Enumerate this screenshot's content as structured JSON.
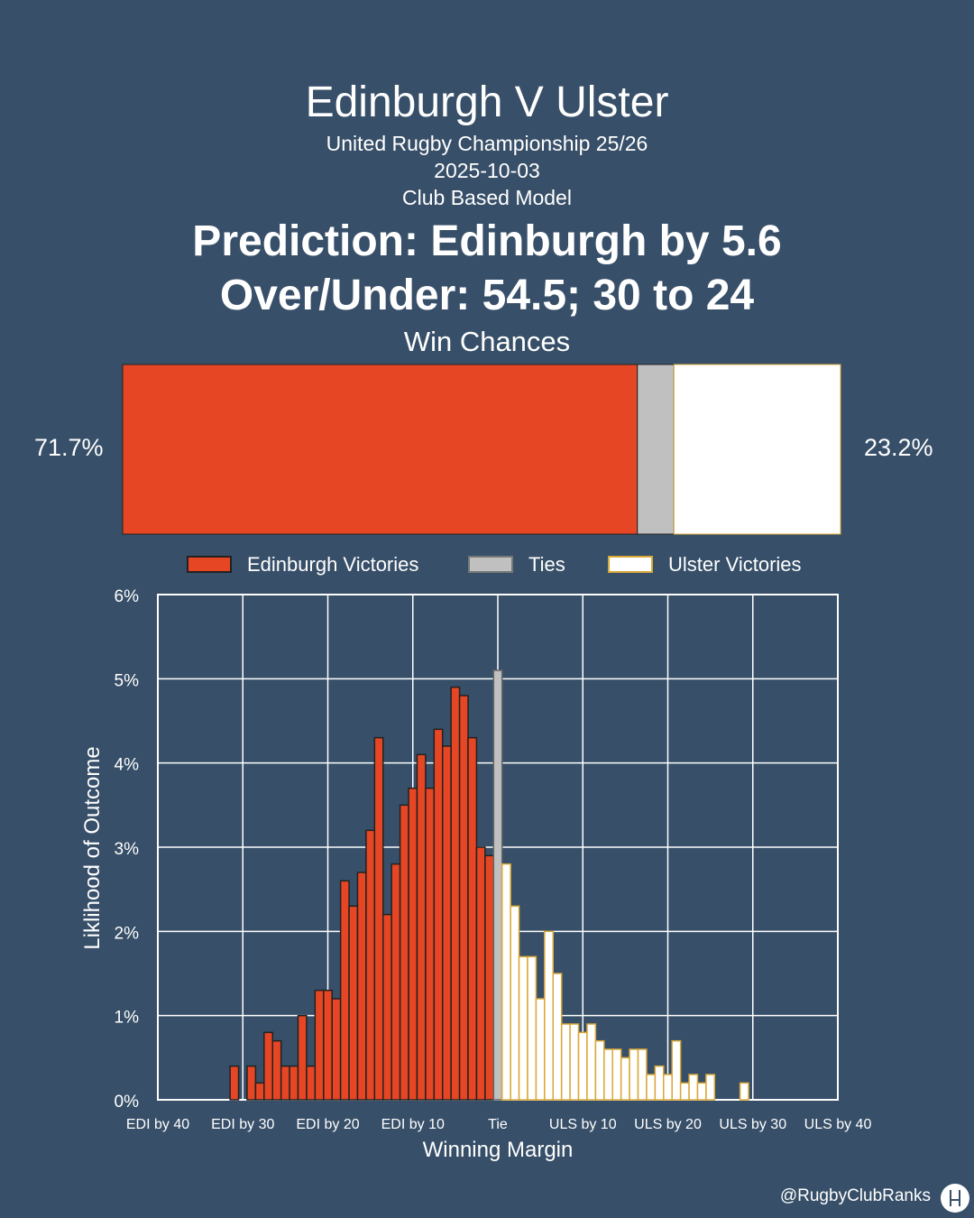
{
  "header": {
    "title": "Edinburgh V Ulster",
    "competition": "United Rugby Championship 25/26",
    "date": "2025-10-03",
    "model": "Club Based Model",
    "prediction": "Prediction: Edinburgh by 5.6",
    "over_under": "Over/Under: 54.5; 30 to 24",
    "win_chances_label": "Win Chances"
  },
  "win_bar": {
    "home_pct": 71.7,
    "tie_pct": 5.1,
    "away_pct": 23.2,
    "home_label": "71.7%",
    "away_label": "23.2%"
  },
  "legend": {
    "items": [
      {
        "label": "Edinburgh Victories",
        "color": "#e64623"
      },
      {
        "label": "Ties",
        "color": "#c0c0c0"
      },
      {
        "label": "Ulster Victories",
        "color": "#ffffff"
      }
    ]
  },
  "colors": {
    "home": "#e64623",
    "tie": "#c0c0c0",
    "away": "#ffffff",
    "home_edge": "#222222",
    "away_edge": "#d8a838",
    "background": "#374f68"
  },
  "chart_data": {
    "type": "bar",
    "xlabel": "Winning Margin",
    "ylabel": "Liklihood of Outcome",
    "xlim": [
      -40,
      40
    ],
    "ylim": [
      0,
      6
    ],
    "grid": true,
    "x_ticks": [
      {
        "value": -40,
        "label": "EDI by 40"
      },
      {
        "value": -30,
        "label": "EDI by 30"
      },
      {
        "value": -20,
        "label": "EDI by 20"
      },
      {
        "value": -10,
        "label": "EDI by 10"
      },
      {
        "value": 0,
        "label": "Tie"
      },
      {
        "value": 10,
        "label": "ULS by 10"
      },
      {
        "value": 20,
        "label": "ULS by 20"
      },
      {
        "value": 30,
        "label": "ULS by 30"
      },
      {
        "value": 40,
        "label": "ULS by 40"
      }
    ],
    "y_ticks": [
      {
        "value": 0,
        "label": "0%"
      },
      {
        "value": 1,
        "label": "1%"
      },
      {
        "value": 2,
        "label": "2%"
      },
      {
        "value": 3,
        "label": "3%"
      },
      {
        "value": 4,
        "label": "4%"
      },
      {
        "value": 5,
        "label": "5%"
      },
      {
        "value": 6,
        "label": "6%"
      }
    ],
    "series": [
      {
        "name": "Edinburgh Victories",
        "margins": [
          -31,
          -30,
          -29,
          -28,
          -27,
          -26,
          -25,
          -24,
          -23,
          -22,
          -21,
          -20,
          -19,
          -18,
          -17,
          -16,
          -15,
          -14,
          -13,
          -12,
          -11,
          -10,
          -9,
          -8,
          -7,
          -6,
          -5,
          -4,
          -3,
          -2,
          -1
        ],
        "values": [
          0.4,
          0,
          0.4,
          0.2,
          0.8,
          0.7,
          0.4,
          0.4,
          1.0,
          0.4,
          1.3,
          1.3,
          1.2,
          2.6,
          2.3,
          2.7,
          3.2,
          4.3,
          2.2,
          2.8,
          3.5,
          3.7,
          4.1,
          3.7,
          4.4,
          4.2,
          4.9,
          4.8,
          4.3,
          3.0,
          2.9
        ]
      },
      {
        "name": "Ties",
        "margins": [
          0
        ],
        "values": [
          5.1
        ]
      },
      {
        "name": "Ulster Victories",
        "margins": [
          1,
          2,
          3,
          4,
          5,
          6,
          7,
          8,
          9,
          10,
          11,
          12,
          13,
          14,
          15,
          16,
          17,
          18,
          19,
          20,
          21,
          22,
          23,
          24,
          25,
          26,
          27,
          28,
          29,
          30,
          31
        ],
        "values": [
          2.8,
          2.3,
          1.7,
          1.7,
          1.2,
          2.0,
          1.5,
          0.9,
          0.9,
          0.8,
          0.9,
          0.7,
          0.6,
          0.6,
          0.5,
          0.6,
          0.6,
          0.3,
          0.4,
          0.3,
          0.7,
          0.2,
          0.3,
          0.2,
          0.3,
          0,
          0,
          0,
          0.2,
          0,
          0
        ]
      }
    ]
  },
  "watermark": "@RugbyClubRanks"
}
